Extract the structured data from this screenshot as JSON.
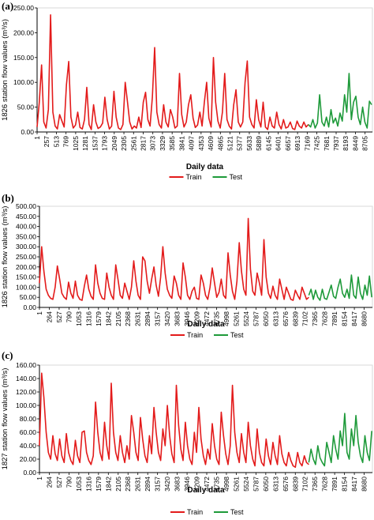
{
  "chart_data": [
    {
      "type": "line",
      "panel_label": "(a)",
      "title": "",
      "xlabel": "Daily data",
      "ylabel": "1826 station flow values (m³/s)",
      "ylim": [
        0,
        250
      ],
      "y_ticks": [
        "0.00",
        "50.00",
        "100.00",
        "150.00",
        "200.00",
        "250.00"
      ],
      "x_range": [
        1,
        8900
      ],
      "x_ticks": [
        "1",
        "257",
        "513",
        "769",
        "1025",
        "1281",
        "1537",
        "1793",
        "2049",
        "2305",
        "2561",
        "2817",
        "3073",
        "3329",
        "3585",
        "3841",
        "4097",
        "4353",
        "4609",
        "4865",
        "5121",
        "5377",
        "5633",
        "5889",
        "6145",
        "6401",
        "6657",
        "6913",
        "7169",
        "7425",
        "7681",
        "7937",
        "8193",
        "8449",
        "8705"
      ],
      "legend": "bottom",
      "series": [
        {
          "name": "Train",
          "color": "#e31b1b",
          "x": [
            1,
            60,
            120,
            180,
            240,
            300,
            360,
            420,
            480,
            540,
            600,
            660,
            720,
            780,
            840,
            900,
            960,
            1020,
            1080,
            1140,
            1200,
            1260,
            1320,
            1380,
            1440,
            1500,
            1560,
            1620,
            1680,
            1740,
            1800,
            1860,
            1920,
            1980,
            2040,
            2100,
            2160,
            2220,
            2280,
            2340,
            2400,
            2460,
            2520,
            2580,
            2640,
            2700,
            2760,
            2820,
            2880,
            2940,
            3000,
            3060,
            3120,
            3180,
            3240,
            3300,
            3360,
            3420,
            3480,
            3540,
            3600,
            3660,
            3720,
            3780,
            3840,
            3900,
            3960,
            4020,
            4080,
            4140,
            4200,
            4260,
            4320,
            4380,
            4440,
            4500,
            4560,
            4620,
            4680,
            4740,
            4800,
            4860,
            4920,
            4980,
            5040,
            5100,
            5160,
            5220,
            5280,
            5340,
            5400,
            5460,
            5520,
            5580,
            5640,
            5700,
            5760,
            5820,
            5880,
            5940,
            6000,
            6060,
            6120,
            6180,
            6240,
            6300,
            6360,
            6420,
            6480,
            6540,
            6600,
            6660,
            6720,
            6780,
            6840,
            6900,
            6960,
            7020,
            7080,
            7140,
            7200
          ],
          "y": [
            10,
            60,
            135,
            20,
            8,
            45,
            236,
            40,
            12,
            6,
            35,
            22,
            10,
            95,
            142,
            30,
            8,
            14,
            40,
            9,
            6,
            25,
            90,
            15,
            5,
            55,
            20,
            7,
            10,
            18,
            70,
            25,
            6,
            12,
            82,
            30,
            8,
            5,
            15,
            100,
            60,
            20,
            6,
            12,
            8,
            30,
            9,
            60,
            80,
            25,
            12,
            70,
            170,
            40,
            15,
            8,
            55,
            20,
            10,
            45,
            30,
            8,
            12,
            118,
            35,
            10,
            20,
            55,
            75,
            28,
            9,
            14,
            40,
            12,
            60,
            100,
            28,
            10,
            150,
            60,
            22,
            8,
            40,
            118,
            25,
            12,
            6,
            55,
            85,
            20,
            10,
            20,
            100,
            143,
            30,
            15,
            8,
            65,
            25,
            10,
            60,
            10,
            5,
            30,
            12,
            8,
            40,
            15,
            6,
            25,
            8,
            10,
            20,
            7,
            5,
            22,
            12,
            8,
            20,
            10,
            15
          ]
        },
        {
          "name": "Test",
          "color": "#1e9a3a",
          "x": [
            7200,
            7260,
            7320,
            7380,
            7440,
            7500,
            7560,
            7620,
            7680,
            7740,
            7800,
            7860,
            7920,
            7980,
            8040,
            8100,
            8160,
            8220,
            8280,
            8340,
            8400,
            8460,
            8520,
            8580,
            8640,
            8700,
            8760,
            8820,
            8880
          ],
          "y": [
            15,
            10,
            25,
            8,
            18,
            75,
            20,
            12,
            30,
            10,
            45,
            18,
            28,
            12,
            38,
            22,
            75,
            40,
            118,
            25,
            60,
            72,
            30,
            15,
            50,
            20,
            8,
            62,
            55
          ]
        }
      ]
    },
    {
      "type": "line",
      "panel_label": "(b)",
      "title": "",
      "xlabel": "Daily data",
      "ylabel": "1826 station flow values (m³/s)",
      "ylim": [
        0,
        500
      ],
      "y_ticks": [
        "0.00",
        "50.00",
        "100.00",
        "150.00",
        "200.00",
        "250.00",
        "300.00",
        "350.00",
        "400.00",
        "450.00",
        "500.00"
      ],
      "x_range": [
        1,
        8900
      ],
      "x_ticks": [
        "1",
        "264",
        "527",
        "790",
        "1053",
        "1316",
        "1579",
        "1842",
        "2105",
        "2368",
        "2631",
        "2894",
        "3157",
        "3420",
        "3683",
        "3946",
        "4209",
        "4472",
        "4735",
        "4998",
        "5261",
        "5524",
        "5787",
        "6050",
        "6313",
        "6576",
        "6839",
        "7102",
        "7365",
        "7628",
        "7891",
        "8154",
        "8417",
        "8680"
      ],
      "legend": "bottom",
      "series": [
        {
          "name": "Train",
          "color": "#e31b1b",
          "x": [
            1,
            60,
            120,
            180,
            240,
            300,
            360,
            420,
            480,
            540,
            600,
            660,
            720,
            780,
            840,
            900,
            960,
            1020,
            1080,
            1140,
            1200,
            1260,
            1320,
            1380,
            1440,
            1500,
            1560,
            1620,
            1680,
            1740,
            1800,
            1860,
            1920,
            1980,
            2040,
            2100,
            2160,
            2220,
            2280,
            2340,
            2400,
            2460,
            2520,
            2580,
            2640,
            2700,
            2760,
            2820,
            2880,
            2940,
            3000,
            3060,
            3120,
            3180,
            3240,
            3300,
            3360,
            3420,
            3480,
            3540,
            3600,
            3660,
            3720,
            3780,
            3840,
            3900,
            3960,
            4020,
            4080,
            4140,
            4200,
            4260,
            4320,
            4380,
            4440,
            4500,
            4560,
            4620,
            4680,
            4740,
            4800,
            4860,
            4920,
            4980,
            5040,
            5100,
            5160,
            5220,
            5280,
            5340,
            5400,
            5460,
            5520,
            5580,
            5640,
            5700,
            5760,
            5820,
            5880,
            5940,
            6000,
            6060,
            6120,
            6180,
            6240,
            6300,
            6360,
            6420,
            6480,
            6540,
            6600,
            6660,
            6720,
            6780,
            6840,
            6900,
            6960,
            7020,
            7080,
            7140,
            7200
          ],
          "y": [
            120,
            300,
            180,
            90,
            60,
            45,
            40,
            100,
            205,
            140,
            70,
            50,
            40,
            125,
            70,
            45,
            130,
            60,
            40,
            35,
            105,
            160,
            90,
            55,
            40,
            210,
            120,
            70,
            45,
            40,
            170,
            100,
            60,
            40,
            210,
            140,
            60,
            45,
            120,
            80,
            40,
            100,
            230,
            130,
            60,
            40,
            250,
            230,
            130,
            70,
            140,
            200,
            110,
            55,
            150,
            300,
            170,
            90,
            60,
            45,
            155,
            120,
            60,
            40,
            220,
            150,
            60,
            40,
            80,
            100,
            45,
            40,
            160,
            120,
            60,
            40,
            100,
            195,
            120,
            50,
            75,
            140,
            60,
            45,
            270,
            160,
            80,
            40,
            130,
            320,
            180,
            90,
            60,
            440,
            190,
            80,
            60,
            170,
            120,
            60,
            335,
            150,
            70,
            45,
            105,
            60,
            40,
            140,
            90,
            40,
            100,
            70,
            40,
            35,
            85,
            60,
            40,
            100,
            70,
            40,
            50
          ]
        },
        {
          "name": "Test",
          "color": "#1e9a3a",
          "x": [
            7200,
            7260,
            7320,
            7380,
            7440,
            7500,
            7560,
            7620,
            7680,
            7740,
            7800,
            7860,
            7920,
            7980,
            8040,
            8100,
            8160,
            8220,
            8280,
            8340,
            8400,
            8460,
            8520,
            8580,
            8640,
            8700,
            8760,
            8820,
            8880
          ],
          "y": [
            60,
            90,
            40,
            85,
            50,
            35,
            90,
            45,
            40,
            75,
            110,
            55,
            45,
            100,
            140,
            70,
            50,
            90,
            45,
            160,
            60,
            45,
            150,
            70,
            40,
            110,
            60,
            155,
            50
          ]
        }
      ]
    },
    {
      "type": "line",
      "panel_label": "(c)",
      "title": "",
      "xlabel": "Daily data",
      "ylabel": "1827 station flow values (m³/s)",
      "ylim": [
        0,
        160
      ],
      "y_ticks": [
        "0.00",
        "20.00",
        "40.00",
        "60.00",
        "80.00",
        "100.00",
        "120.00",
        "140.00",
        "160.00"
      ],
      "x_range": [
        1,
        8900
      ],
      "x_ticks": [
        "1",
        "264",
        "527",
        "790",
        "1053",
        "1316",
        "1579",
        "1842",
        "2105",
        "2368",
        "2631",
        "2894",
        "3157",
        "3420",
        "3683",
        "3946",
        "4209",
        "4472",
        "4735",
        "4998",
        "5261",
        "5524",
        "5787",
        "6050",
        "6313",
        "6576",
        "6839",
        "7102",
        "7365",
        "7628",
        "7891",
        "8154",
        "8417",
        "8680"
      ],
      "legend": "bottom",
      "series": [
        {
          "name": "Train",
          "color": "#e31b1b",
          "x": [
            1,
            60,
            120,
            180,
            240,
            300,
            360,
            420,
            480,
            540,
            600,
            660,
            720,
            780,
            840,
            900,
            960,
            1020,
            1080,
            1140,
            1200,
            1260,
            1320,
            1380,
            1440,
            1500,
            1560,
            1620,
            1680,
            1740,
            1800,
            1860,
            1920,
            1980,
            2040,
            2100,
            2160,
            2220,
            2280,
            2340,
            2400,
            2460,
            2520,
            2580,
            2640,
            2700,
            2760,
            2820,
            2880,
            2940,
            3000,
            3060,
            3120,
            3180,
            3240,
            3300,
            3360,
            3420,
            3480,
            3540,
            3600,
            3660,
            3720,
            3780,
            3840,
            3900,
            3960,
            4020,
            4080,
            4140,
            4200,
            4260,
            4320,
            4380,
            4440,
            4500,
            4560,
            4620,
            4680,
            4740,
            4800,
            4860,
            4920,
            4980,
            5040,
            5100,
            5160,
            5220,
            5280,
            5340,
            5400,
            5460,
            5520,
            5580,
            5640,
            5700,
            5760,
            5820,
            5880,
            5940,
            6000,
            6060,
            6120,
            6180,
            6240,
            6300,
            6360,
            6420,
            6480,
            6540,
            6600,
            6660,
            6720,
            6780,
            6840,
            6900,
            6960,
            7020,
            7080,
            7140,
            7200
          ],
          "y": [
            40,
            148,
            112,
            60,
            30,
            20,
            55,
            28,
            18,
            50,
            25,
            15,
            58,
            30,
            18,
            12,
            48,
            25,
            15,
            60,
            62,
            30,
            18,
            12,
            25,
            105,
            60,
            30,
            18,
            75,
            40,
            20,
            133,
            60,
            30,
            18,
            55,
            30,
            15,
            40,
            20,
            85,
            60,
            30,
            18,
            82,
            50,
            25,
            15,
            55,
            28,
            97,
            60,
            30,
            18,
            65,
            40,
            100,
            55,
            28,
            15,
            130,
            70,
            35,
            18,
            75,
            40,
            20,
            12,
            60,
            30,
            97,
            50,
            25,
            12,
            35,
            20,
            73,
            40,
            20,
            12,
            90,
            55,
            28,
            12,
            40,
            130,
            60,
            30,
            15,
            58,
            30,
            15,
            75,
            40,
            20,
            10,
            65,
            30,
            15,
            10,
            50,
            25,
            12,
            45,
            25,
            12,
            55,
            28,
            15,
            10,
            30,
            18,
            10,
            8,
            30,
            15,
            10,
            25,
            15,
            12
          ]
        },
        {
          "name": "Test",
          "color": "#1e9a3a",
          "x": [
            7200,
            7260,
            7320,
            7380,
            7440,
            7500,
            7560,
            7620,
            7680,
            7740,
            7800,
            7860,
            7920,
            7980,
            8040,
            8100,
            8160,
            8220,
            8280,
            8340,
            8400,
            8460,
            8520,
            8580,
            8640,
            8700,
            8760,
            8820,
            8880
          ],
          "y": [
            15,
            35,
            20,
            12,
            40,
            22,
            15,
            10,
            45,
            30,
            15,
            55,
            35,
            20,
            62,
            40,
            88,
            30,
            20,
            65,
            40,
            85,
            45,
            25,
            15,
            55,
            30,
            18,
            62
          ]
        }
      ]
    }
  ]
}
